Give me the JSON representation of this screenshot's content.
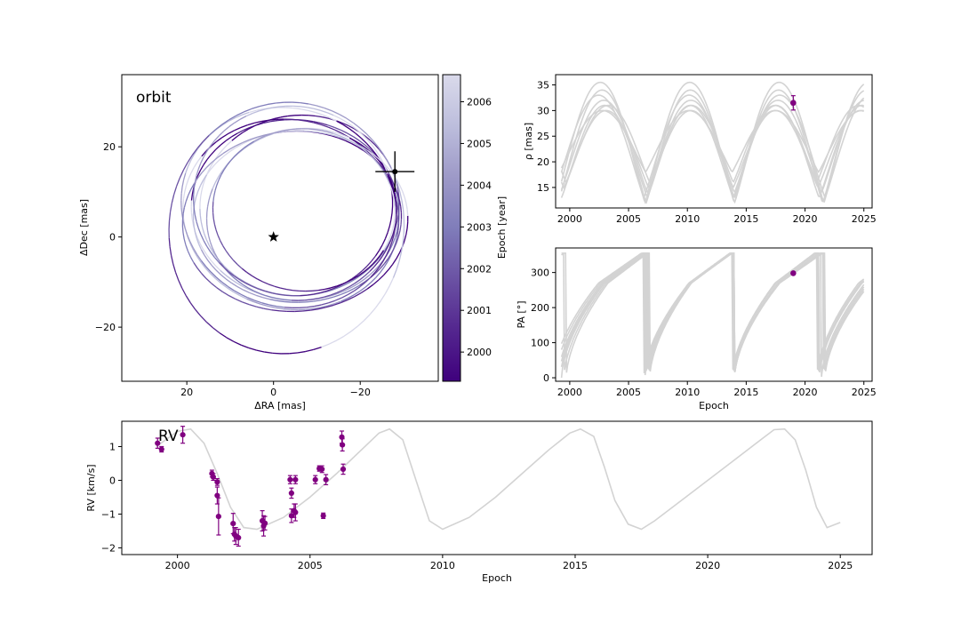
{
  "chart_data": [
    {
      "id": "orbit",
      "type": "orbit-plot",
      "title": "orbit",
      "title_color": "#ff0000",
      "xlabel": "ΔRA [mas]",
      "ylabel": "ΔDec [mas]",
      "xlim": [
        35,
        -38
      ],
      "ylim": [
        -32,
        36
      ],
      "xticks": [
        20,
        0,
        -20
      ],
      "xtick_labels": [
        "20",
        "0",
        "−20"
      ],
      "yticks": [
        20,
        0,
        -20
      ],
      "ytick_labels": [
        "20",
        "0",
        "−20"
      ],
      "star": {
        "x": 0,
        "y": 0,
        "marker": "star"
      },
      "companion": {
        "x": -28,
        "y": 14.5,
        "xerr": 1.5,
        "yerr": 1.5
      },
      "colorbar": {
        "label": "Epoch [year]",
        "range": [
          1999.3,
          2006.65
        ],
        "ticks": [
          2000,
          2001,
          2002,
          2003,
          2004,
          2005,
          2006
        ],
        "tick_labels": [
          "2000",
          "2001",
          "2002",
          "2003",
          "2004",
          "2005",
          "2006"
        ],
        "colors": [
          "#3f007d",
          "#54278f",
          "#6a51a3",
          "#807dba",
          "#9e9ac8",
          "#bcbddc",
          "#dadaeb"
        ]
      },
      "orbits": [
        {
          "cx": -5.0,
          "cy": 6.0,
          "a": 24,
          "b": 20,
          "rot": 5
        },
        {
          "cx": -4.0,
          "cy": 5.0,
          "a": 25,
          "b": 21,
          "rot": 10
        },
        {
          "cx": -6.0,
          "cy": 7.0,
          "a": 23,
          "b": 20,
          "rot": -5
        },
        {
          "cx": -5.5,
          "cy": 4.5,
          "a": 24,
          "b": 19,
          "rot": 0
        },
        {
          "cx": -3.5,
          "cy": 6.5,
          "a": 25,
          "b": 22,
          "rot": 15
        },
        {
          "cx": -6.5,
          "cy": 5.0,
          "a": 22,
          "b": 19,
          "rot": -10
        },
        {
          "cx": -4.5,
          "cy": 8.0,
          "a": 23,
          "b": 21,
          "rot": 8
        },
        {
          "cx": -5.0,
          "cy": 3.5,
          "a": 26,
          "b": 20,
          "rot": -3
        },
        {
          "cx": -7.0,
          "cy": 6.0,
          "a": 21,
          "b": 18,
          "rot": 3
        },
        {
          "cx": -3.0,
          "cy": 2.0,
          "a": 27,
          "b": 28,
          "rot": 20
        }
      ]
    },
    {
      "id": "rho",
      "type": "line",
      "ylabel": "ρ [mas]",
      "xlim": [
        1998.8,
        2025.7
      ],
      "ylim": [
        11,
        37
      ],
      "xticks": [
        2000,
        2005,
        2010,
        2015,
        2020,
        2025
      ],
      "xtick_labels": [
        "2000",
        "2005",
        "2010",
        "2015",
        "2020",
        "2025"
      ],
      "yticks": [
        15,
        20,
        25,
        30,
        35
      ],
      "ytick_labels": [
        "15",
        "20",
        "25",
        "30",
        "35"
      ],
      "observation": {
        "x": 2019.0,
        "y": 31.5,
        "yerr": 1.4,
        "color": "#800080"
      },
      "model_curves": [
        {
          "period": 7.3,
          "phase": 0.0,
          "min": 13,
          "max": 31,
          "offset": 0.0
        },
        {
          "period": 7.5,
          "phase": 0.3,
          "min": 12,
          "max": 34,
          "offset": 0.0
        },
        {
          "period": 7.2,
          "phase": -0.2,
          "min": 15,
          "max": 30,
          "offset": 0.0
        },
        {
          "period": 7.6,
          "phase": 0.5,
          "min": 12,
          "max": 35.5,
          "offset": 0.0
        },
        {
          "period": 7.4,
          "phase": 0.1,
          "min": 14,
          "max": 32,
          "offset": 0.0
        },
        {
          "period": 7.1,
          "phase": -0.4,
          "min": 16,
          "max": 31,
          "offset": 0.0
        },
        {
          "period": 7.7,
          "phase": 0.7,
          "min": 13,
          "max": 33,
          "offset": 0.0
        },
        {
          "period": 7.35,
          "phase": 0.2,
          "min": 18,
          "max": 30,
          "offset": 0.0
        }
      ]
    },
    {
      "id": "pa",
      "type": "line",
      "xlabel": "Epoch",
      "ylabel": "PA [°]",
      "xlim": [
        1998.8,
        2025.7
      ],
      "ylim": [
        -10,
        370
      ],
      "xticks": [
        2000,
        2005,
        2010,
        2015,
        2020,
        2025
      ],
      "xtick_labels": [
        "2000",
        "2005",
        "2010",
        "2015",
        "2020",
        "2025"
      ],
      "yticks": [
        0,
        100,
        200,
        300
      ],
      "ytick_labels": [
        "0",
        "100",
        "200",
        "300"
      ],
      "observation": {
        "x": 2019.0,
        "y": 298,
        "yerr": 2,
        "color": "#800080"
      },
      "model_curves": [
        {
          "period": 7.3,
          "phase": 0.0
        },
        {
          "period": 7.5,
          "phase": 0.3
        },
        {
          "period": 7.2,
          "phase": -0.2
        },
        {
          "period": 7.6,
          "phase": 0.5
        },
        {
          "period": 7.4,
          "phase": 0.1
        },
        {
          "period": 7.1,
          "phase": -0.4
        },
        {
          "period": 7.7,
          "phase": 0.7
        },
        {
          "period": 7.35,
          "phase": 0.2
        }
      ]
    },
    {
      "id": "rv",
      "type": "scatter+line",
      "title": "RV",
      "title_color": "#0000ff",
      "xlabel": "Epoch",
      "ylabel": "RV [km/s]",
      "xlim": [
        1997.9,
        2026.2
      ],
      "ylim": [
        -2.2,
        1.75
      ],
      "xticks": [
        2000,
        2005,
        2010,
        2015,
        2020,
        2025
      ],
      "xtick_labels": [
        "2000",
        "2005",
        "2010",
        "2015",
        "2020",
        "2025"
      ],
      "yticks": [
        1,
        0,
        -1,
        -2
      ],
      "ytick_labels": [
        "1",
        "0",
        "−1",
        "−2"
      ],
      "model": {
        "x": [
          1999.2,
          2000.0,
          2000.5,
          2001.0,
          2001.5,
          2002.0,
          2002.5,
          2003.0,
          2004.0,
          2005.0,
          2006.0,
          2007.0,
          2007.6,
          2008.0,
          2008.5,
          2009.0,
          2009.5,
          2010.0,
          2011.0,
          2012.0,
          2013.0,
          2014.0,
          2014.8,
          2015.2,
          2015.7,
          2016.1,
          2016.5,
          2017.0,
          2017.5,
          2018.0,
          2019.0,
          2020.0,
          2021.0,
          2022.0,
          2022.5,
          2022.9,
          2023.3,
          2023.7,
          2024.1,
          2024.5,
          2025.0
        ],
        "y": [
          1.0,
          1.45,
          1.52,
          1.1,
          0.2,
          -0.8,
          -1.4,
          -1.45,
          -1.1,
          -0.5,
          0.2,
          0.95,
          1.4,
          1.52,
          1.2,
          0.0,
          -1.2,
          -1.45,
          -1.1,
          -0.5,
          0.2,
          0.9,
          1.4,
          1.52,
          1.3,
          0.4,
          -0.6,
          -1.3,
          -1.45,
          -1.2,
          -0.6,
          0.0,
          0.6,
          1.2,
          1.5,
          1.52,
          1.2,
          0.3,
          -0.8,
          -1.4,
          -1.25
        ]
      },
      "observations": {
        "x": [
          1999.25,
          1999.4,
          2000.2,
          2001.3,
          2001.35,
          2001.5,
          2001.5,
          2001.55,
          2002.1,
          2002.15,
          2002.2,
          2002.3,
          2003.2,
          2003.25,
          2003.3,
          2004.25,
          2004.3,
          2004.3,
          2004.4,
          2004.45,
          2004.45,
          2005.2,
          2005.35,
          2005.45,
          2005.5,
          2005.6,
          2006.2,
          2006.22,
          2006.25
        ],
        "y": [
          1.1,
          0.92,
          1.35,
          0.2,
          0.1,
          -0.05,
          -0.45,
          -1.07,
          -1.28,
          -1.6,
          -1.65,
          -1.7,
          -1.2,
          -1.35,
          -1.27,
          0.02,
          -0.38,
          -1.05,
          -0.9,
          0.02,
          -0.95,
          0.02,
          0.35,
          0.33,
          -1.05,
          0.02,
          1.28,
          1.05,
          0.33
        ],
        "yerr": [
          0.15,
          0.08,
          0.25,
          0.1,
          0.1,
          0.1,
          0.25,
          0.55,
          0.3,
          0.2,
          0.25,
          0.25,
          0.3,
          0.3,
          0.2,
          0.12,
          0.15,
          0.2,
          0.2,
          0.12,
          0.25,
          0.12,
          0.08,
          0.1,
          0.08,
          0.15,
          0.18,
          0.18,
          0.15
        ],
        "color": "#800080"
      }
    }
  ]
}
